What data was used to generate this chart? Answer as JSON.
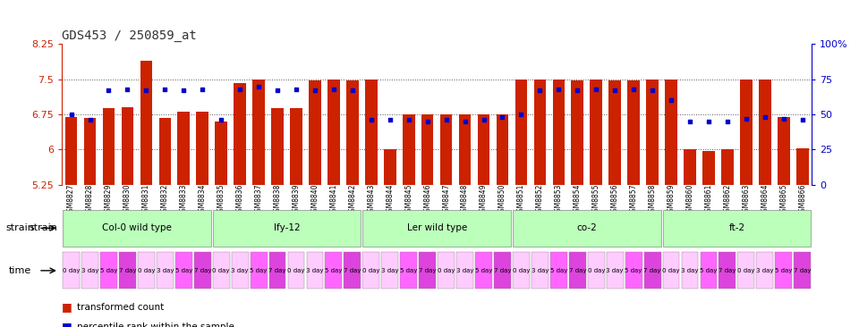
{
  "title": "GDS453 / 250859_at",
  "samples": [
    "GSM8827",
    "GSM8828",
    "GSM8829",
    "GSM8830",
    "GSM8831",
    "GSM8832",
    "GSM8833",
    "GSM8834",
    "GSM8835",
    "GSM8836",
    "GSM8837",
    "GSM8838",
    "GSM8839",
    "GSM8840",
    "GSM8841",
    "GSM8842",
    "GSM8843",
    "GSM8844",
    "GSM8845",
    "GSM8846",
    "GSM8847",
    "GSM8848",
    "GSM8849",
    "GSM8850",
    "GSM8851",
    "GSM8852",
    "GSM8853",
    "GSM8854",
    "GSM8855",
    "GSM8856",
    "GSM8857",
    "GSM8858",
    "GSM8859",
    "GSM8860",
    "GSM8861",
    "GSM8862",
    "GSM8863",
    "GSM8864",
    "GSM8865",
    "GSM8866"
  ],
  "bar_values": [
    6.7,
    6.68,
    6.88,
    6.9,
    7.9,
    6.68,
    6.8,
    6.8,
    6.6,
    7.42,
    7.5,
    6.88,
    6.88,
    7.47,
    7.5,
    7.47,
    7.5,
    6.0,
    6.75,
    6.75,
    6.75,
    6.75,
    6.75,
    6.75,
    7.5,
    7.5,
    7.5,
    7.48,
    7.5,
    7.48,
    7.47,
    7.5,
    7.5,
    6.0,
    5.97,
    6.0,
    7.5,
    7.5,
    6.7,
    6.02
  ],
  "percentile_values": [
    50,
    46,
    67,
    68,
    67,
    68,
    67,
    68,
    46,
    68,
    70,
    67,
    68,
    67,
    68,
    67,
    46,
    46,
    46,
    45,
    46,
    45,
    46,
    48,
    50,
    67,
    68,
    67,
    68,
    67,
    68,
    67,
    60,
    45,
    45,
    45,
    47,
    48,
    47,
    46
  ],
  "ylim_left": [
    5.25,
    8.25
  ],
  "ylim_right": [
    0,
    100
  ],
  "yticks_left": [
    5.25,
    6.0,
    6.75,
    7.5,
    8.25
  ],
  "ytick_labels_left": [
    "5.25",
    "6",
    "6.75",
    "7.5",
    "8.25"
  ],
  "yticks_right": [
    0,
    25,
    50,
    75,
    100
  ],
  "ytick_labels_right": [
    "0",
    "25",
    "50",
    "75",
    "100%"
  ],
  "strains": [
    {
      "name": "Col-0 wild type",
      "start": 0,
      "end": 7,
      "color": "#bbffbb"
    },
    {
      "name": "lfy-12",
      "start": 8,
      "end": 15,
      "color": "#bbffbb"
    },
    {
      "name": "Ler wild type",
      "start": 16,
      "end": 23,
      "color": "#bbffbb"
    },
    {
      "name": "co-2",
      "start": 24,
      "end": 31,
      "color": "#bbffbb"
    },
    {
      "name": "ft-2",
      "start": 32,
      "end": 39,
      "color": "#bbffbb"
    }
  ],
  "time_colors_map": {
    "0 day": "#ffccff",
    "3 day": "#ffccff",
    "5 day": "#ff66ff",
    "7 day": "#dd44dd"
  },
  "time_labels_cycle": [
    "0 day",
    "3 day",
    "5 day",
    "7 day"
  ],
  "bar_color": "#cc2200",
  "dot_color": "#0000cc",
  "background_color": "#ffffff",
  "left_axis_color": "#cc2200",
  "right_axis_color": "#0000cc",
  "grid_color": "#555555"
}
